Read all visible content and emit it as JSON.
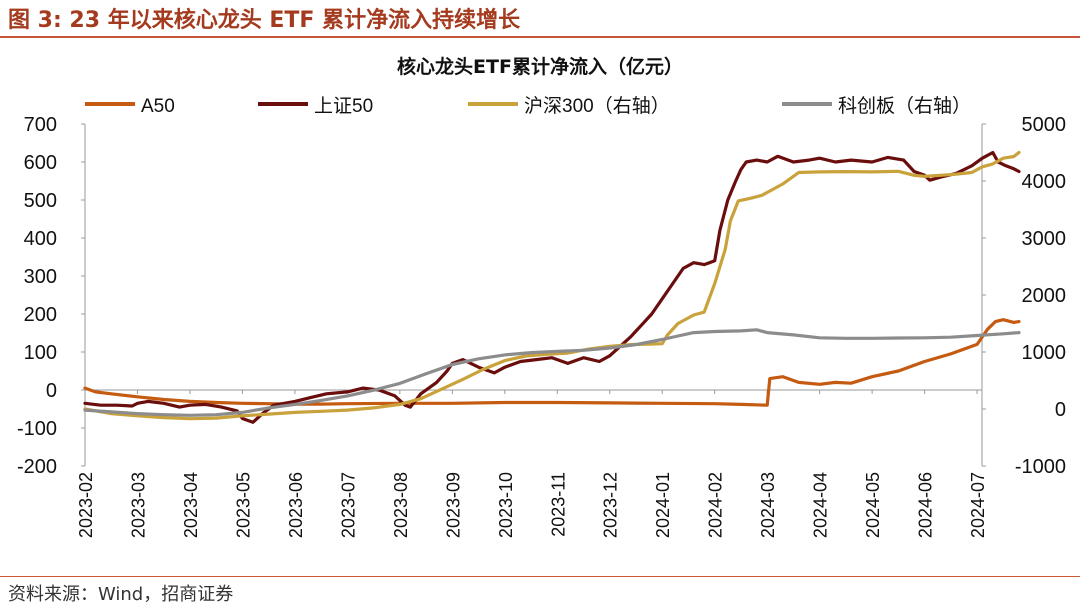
{
  "figure_title": "图 3:  23 年以来核心龙头 ETF 累计净流入持续增长",
  "source": "资料来源：Wind，招商证券",
  "colors": {
    "title": "#a43a1e",
    "a50": "#c55a11",
    "sz50": "#6a0d0d",
    "hs300": "#c9a23b",
    "kcb": "#8c8c8c"
  },
  "chart_data": {
    "type": "line",
    "title": "核心龙头ETF累计净流入（亿元）",
    "xlabel": "",
    "ylabel": "",
    "ylim": [
      -200,
      700
    ],
    "y2lim": [
      -1000,
      5000
    ],
    "yticks": [
      -200,
      -100,
      0,
      100,
      200,
      300,
      400,
      500,
      600,
      700
    ],
    "y2ticks": [
      -1000,
      0,
      1000,
      2000,
      3000,
      4000,
      5000
    ],
    "xticks": [
      "2023-02",
      "2023-03",
      "2023-04",
      "2023-05",
      "2023-06",
      "2023-07",
      "2023-08",
      "2023-09",
      "2023-10",
      "2023-11",
      "2023-12",
      "2024-01",
      "2024-02",
      "2024-03",
      "2024-04",
      "2024-05",
      "2024-06",
      "2024-07"
    ],
    "legend_position": "top",
    "series": [
      {
        "name": "A50",
        "axis": "left",
        "color": "#c55a11",
        "points": [
          [
            0.0,
            5
          ],
          [
            0.2,
            -5
          ],
          [
            0.5,
            -10
          ],
          [
            1.0,
            -18
          ],
          [
            1.5,
            -25
          ],
          [
            2.0,
            -30
          ],
          [
            2.5,
            -33
          ],
          [
            3.0,
            -35
          ],
          [
            3.5,
            -36
          ],
          [
            4.0,
            -37
          ],
          [
            4.5,
            -37
          ],
          [
            5.0,
            -36
          ],
          [
            6.0,
            -35
          ],
          [
            7.0,
            -35
          ],
          [
            8.0,
            -33
          ],
          [
            9.0,
            -33
          ],
          [
            10.0,
            -34
          ],
          [
            11.0,
            -35
          ],
          [
            12.0,
            -36
          ],
          [
            12.5,
            -38
          ],
          [
            13.0,
            -40
          ],
          [
            13.05,
            30
          ],
          [
            13.3,
            35
          ],
          [
            13.6,
            20
          ],
          [
            14.0,
            15
          ],
          [
            14.3,
            20
          ],
          [
            14.6,
            18
          ],
          [
            15.0,
            35
          ],
          [
            15.5,
            50
          ],
          [
            16.0,
            75
          ],
          [
            16.5,
            95
          ],
          [
            17.0,
            120
          ],
          [
            17.2,
            160
          ],
          [
            17.35,
            180
          ],
          [
            17.5,
            185
          ],
          [
            17.7,
            178
          ],
          [
            17.8,
            180
          ]
        ]
      },
      {
        "name": "上证50",
        "axis": "left",
        "color": "#6a0d0d",
        "points": [
          [
            0.0,
            -35
          ],
          [
            0.3,
            -40
          ],
          [
            0.6,
            -40
          ],
          [
            0.9,
            -42
          ],
          [
            1.0,
            -35
          ],
          [
            1.2,
            -30
          ],
          [
            1.5,
            -35
          ],
          [
            1.8,
            -45
          ],
          [
            2.0,
            -40
          ],
          [
            2.3,
            -38
          ],
          [
            2.6,
            -45
          ],
          [
            2.9,
            -55
          ],
          [
            3.0,
            -75
          ],
          [
            3.2,
            -85
          ],
          [
            3.4,
            -60
          ],
          [
            3.6,
            -40
          ],
          [
            3.8,
            -35
          ],
          [
            4.0,
            -30
          ],
          [
            4.3,
            -20
          ],
          [
            4.6,
            -10
          ],
          [
            5.0,
            -5
          ],
          [
            5.3,
            5
          ],
          [
            5.6,
            0
          ],
          [
            5.9,
            -15
          ],
          [
            6.1,
            -40
          ],
          [
            6.2,
            -45
          ],
          [
            6.4,
            -10
          ],
          [
            6.7,
            20
          ],
          [
            6.9,
            50
          ],
          [
            7.0,
            70
          ],
          [
            7.2,
            80
          ],
          [
            7.5,
            60
          ],
          [
            7.8,
            45
          ],
          [
            8.0,
            60
          ],
          [
            8.3,
            75
          ],
          [
            8.6,
            80
          ],
          [
            8.9,
            85
          ],
          [
            9.2,
            70
          ],
          [
            9.5,
            85
          ],
          [
            9.8,
            75
          ],
          [
            10.0,
            90
          ],
          [
            10.2,
            115
          ],
          [
            10.4,
            140
          ],
          [
            10.6,
            170
          ],
          [
            10.8,
            200
          ],
          [
            11.0,
            240
          ],
          [
            11.2,
            280
          ],
          [
            11.4,
            320
          ],
          [
            11.6,
            335
          ],
          [
            11.8,
            330
          ],
          [
            11.9,
            335
          ],
          [
            12.0,
            340
          ],
          [
            12.1,
            420
          ],
          [
            12.25,
            500
          ],
          [
            12.4,
            550
          ],
          [
            12.5,
            580
          ],
          [
            12.6,
            600
          ],
          [
            12.8,
            605
          ],
          [
            13.0,
            600
          ],
          [
            13.2,
            615
          ],
          [
            13.5,
            600
          ],
          [
            13.8,
            605
          ],
          [
            14.0,
            610
          ],
          [
            14.3,
            600
          ],
          [
            14.6,
            605
          ],
          [
            15.0,
            600
          ],
          [
            15.3,
            612
          ],
          [
            15.6,
            605
          ],
          [
            15.8,
            575
          ],
          [
            16.0,
            565
          ],
          [
            16.1,
            552
          ],
          [
            16.3,
            560
          ],
          [
            16.6,
            570
          ],
          [
            16.9,
            590
          ],
          [
            17.1,
            610
          ],
          [
            17.3,
            625
          ],
          [
            17.4,
            600
          ],
          [
            17.55,
            590
          ],
          [
            17.7,
            582
          ],
          [
            17.8,
            575
          ]
        ]
      },
      {
        "name": "沪深300（右轴）",
        "axis": "right",
        "color": "#c9a23b",
        "points": [
          [
            0.0,
            0
          ],
          [
            0.5,
            -80
          ],
          [
            1.0,
            -120
          ],
          [
            1.5,
            -150
          ],
          [
            2.0,
            -170
          ],
          [
            2.5,
            -160
          ],
          [
            3.0,
            -120
          ],
          [
            3.5,
            -90
          ],
          [
            4.0,
            -60
          ],
          [
            4.5,
            -40
          ],
          [
            5.0,
            -20
          ],
          [
            5.5,
            20
          ],
          [
            6.0,
            80
          ],
          [
            6.4,
            180
          ],
          [
            6.8,
            350
          ],
          [
            7.2,
            520
          ],
          [
            7.6,
            700
          ],
          [
            8.0,
            850
          ],
          [
            8.4,
            930
          ],
          [
            8.8,
            960
          ],
          [
            9.2,
            980
          ],
          [
            9.6,
            1050
          ],
          [
            10.0,
            1100
          ],
          [
            10.4,
            1130
          ],
          [
            10.8,
            1140
          ],
          [
            11.0,
            1145
          ],
          [
            11.1,
            1300
          ],
          [
            11.3,
            1500
          ],
          [
            11.6,
            1650
          ],
          [
            11.8,
            1700
          ],
          [
            12.0,
            2200
          ],
          [
            12.2,
            2800
          ],
          [
            12.3,
            3300
          ],
          [
            12.45,
            3650
          ],
          [
            12.7,
            3700
          ],
          [
            12.9,
            3750
          ],
          [
            13.1,
            3850
          ],
          [
            13.3,
            3950
          ],
          [
            13.6,
            4150
          ],
          [
            14.0,
            4160
          ],
          [
            14.5,
            4165
          ],
          [
            15.0,
            4160
          ],
          [
            15.5,
            4170
          ],
          [
            15.8,
            4100
          ],
          [
            16.0,
            4080
          ],
          [
            16.3,
            4100
          ],
          [
            16.6,
            4120
          ],
          [
            16.9,
            4150
          ],
          [
            17.1,
            4250
          ],
          [
            17.3,
            4300
          ],
          [
            17.5,
            4400
          ],
          [
            17.7,
            4430
          ],
          [
            17.8,
            4500
          ]
        ]
      },
      {
        "name": "科创板（右轴）",
        "axis": "right",
        "color": "#8c8c8c",
        "points": [
          [
            0.0,
            -20
          ],
          [
            0.5,
            -50
          ],
          [
            1.0,
            -80
          ],
          [
            1.5,
            -100
          ],
          [
            2.0,
            -110
          ],
          [
            2.5,
            -100
          ],
          [
            3.0,
            -60
          ],
          [
            3.5,
            20
          ],
          [
            4.0,
            80
          ],
          [
            4.5,
            150
          ],
          [
            5.0,
            230
          ],
          [
            5.5,
            330
          ],
          [
            6.0,
            450
          ],
          [
            6.5,
            620
          ],
          [
            7.0,
            780
          ],
          [
            7.5,
            880
          ],
          [
            8.0,
            950
          ],
          [
            8.5,
            990
          ],
          [
            9.0,
            1010
          ],
          [
            9.5,
            1030
          ],
          [
            10.0,
            1070
          ],
          [
            10.5,
            1130
          ],
          [
            11.0,
            1220
          ],
          [
            11.3,
            1280
          ],
          [
            11.6,
            1340
          ],
          [
            12.0,
            1360
          ],
          [
            12.5,
            1370
          ],
          [
            12.8,
            1390
          ],
          [
            13.0,
            1340
          ],
          [
            13.5,
            1300
          ],
          [
            14.0,
            1250
          ],
          [
            14.5,
            1240
          ],
          [
            15.0,
            1240
          ],
          [
            15.5,
            1245
          ],
          [
            16.0,
            1250
          ],
          [
            16.5,
            1260
          ],
          [
            17.0,
            1290
          ],
          [
            17.5,
            1320
          ],
          [
            17.8,
            1340
          ]
        ]
      }
    ]
  }
}
